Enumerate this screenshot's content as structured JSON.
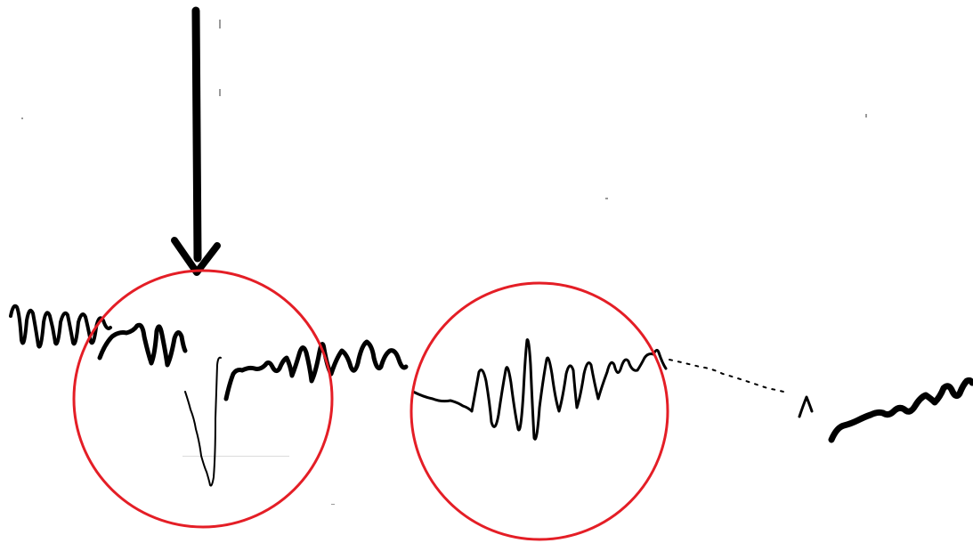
{
  "figure": {
    "trace_color": "#000000",
    "annotation_color": "#e41e26",
    "arrow_color": "#000000",
    "markers": {
      "arrow": "down-arrow-icon",
      "highlight_1": "circle",
      "highlight_2": "circle"
    }
  }
}
